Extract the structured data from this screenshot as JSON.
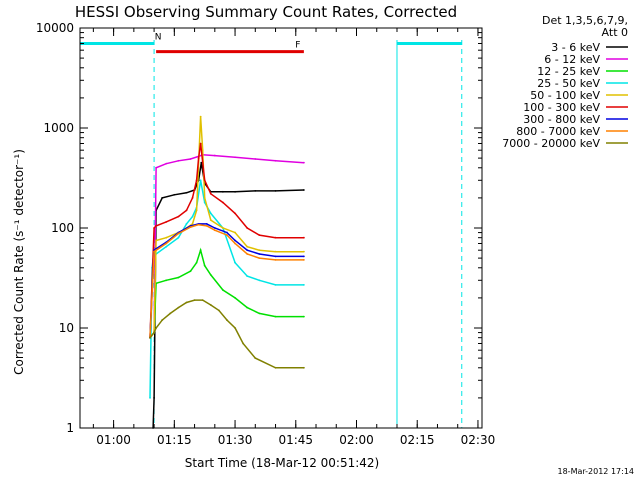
{
  "chart_data": {
    "type": "line",
    "title": "HESSI Observing Summary Count Rates, Corrected",
    "xlabel": "Start Time (18-Mar-12 00:51:42)",
    "ylabel": "Corrected Count Rate (s⁻¹ detector⁻¹)",
    "yscale": "log",
    "xlim": [
      "00:51:42",
      "02:31:00"
    ],
    "ylim": [
      1,
      10000
    ],
    "x_ticks": [
      "01:00",
      "01:15",
      "01:30",
      "01:45",
      "02:00",
      "02:15",
      "02:30"
    ],
    "y_ticks": [
      "1",
      "10",
      "100",
      "1000",
      "10000"
    ],
    "legend_title": [
      "Det 1,3,5,6,7,9,",
      "Att 0"
    ],
    "legend_placement": "right",
    "footer": "18-Mar-2012 17:14",
    "flags": [
      {
        "label": "N",
        "color": "#00e5e5",
        "segments": [
          [
            "00:51:42",
            "01:10:00"
          ],
          [
            "02:10:00",
            "02:26:00"
          ]
        ],
        "level": 7000
      },
      {
        "label": "F",
        "color": "#e00000",
        "segments": [
          [
            "01:10:30",
            "01:47:00"
          ]
        ],
        "level": 5800
      }
    ],
    "night_boundaries": [
      "00:51:42",
      "01:10:00",
      "02:10:00",
      "02:26:00"
    ],
    "series": [
      {
        "name": "3 - 6 keV",
        "color": "#000000",
        "x": [
          "01:09:45",
          "01:10:00",
          "01:10:30",
          "01:12:00",
          "01:15:00",
          "01:18:00",
          "01:20:00",
          "01:21:00",
          "01:21:40",
          "01:22:30",
          "01:24:00",
          "01:27:00",
          "01:30:00",
          "01:35:00",
          "01:40:00",
          "01:47:00"
        ],
        "y": [
          1,
          2,
          150,
          200,
          215,
          225,
          240,
          300,
          450,
          280,
          230,
          230,
          230,
          235,
          235,
          240
        ]
      },
      {
        "name": "6 - 12 keV",
        "color": "#e000e0",
        "x": [
          "01:09:00",
          "01:10:00",
          "01:10:30",
          "01:13:00",
          "01:16:00",
          "01:19:00",
          "01:21:00",
          "01:22:00",
          "01:25:00",
          "01:30:00",
          "01:35:00",
          "01:40:00",
          "01:47:00"
        ],
        "y": [
          8,
          9,
          400,
          440,
          470,
          490,
          520,
          540,
          530,
          510,
          490,
          470,
          450
        ]
      },
      {
        "name": "12 - 25 keV",
        "color": "#00e000",
        "x": [
          "01:09:00",
          "01:10:00",
          "01:10:30",
          "01:13:00",
          "01:16:00",
          "01:19:00",
          "01:20:30",
          "01:21:30",
          "01:22:30",
          "01:24:00",
          "01:27:00",
          "01:30:00",
          "01:33:00",
          "01:36:00",
          "01:40:00",
          "01:47:00"
        ],
        "y": [
          8,
          9,
          28,
          30,
          32,
          37,
          45,
          60,
          42,
          34,
          24,
          20,
          16,
          14,
          13,
          13
        ]
      },
      {
        "name": "25 - 50 keV",
        "color": "#00e5e5",
        "x": [
          "01:09:00",
          "01:09:30",
          "01:10:00",
          "01:10:30",
          "01:13:00",
          "01:16:00",
          "01:18:00",
          "01:19:30",
          "01:20:30",
          "01:21:30",
          "01:22:30",
          "01:24:00",
          "01:27:00",
          "01:30:00",
          "01:33:00",
          "01:36:00",
          "01:40:00",
          "01:47:00"
        ],
        "y": [
          2,
          40,
          60,
          55,
          65,
          80,
          110,
          130,
          160,
          300,
          180,
          140,
          100,
          45,
          33,
          30,
          27,
          27
        ]
      },
      {
        "name": "50 - 100 keV",
        "color": "#e0c000",
        "x": [
          "01:09:00",
          "01:10:00",
          "01:10:30",
          "01:13:00",
          "01:16:00",
          "01:18:00",
          "01:19:30",
          "01:20:30",
          "01:21:30",
          "01:22:00",
          "01:22:30",
          "01:24:00",
          "01:27:00",
          "01:30:00",
          "01:33:00",
          "01:36:00",
          "01:40:00",
          "01:47:00"
        ],
        "y": [
          8,
          9,
          75,
          80,
          90,
          100,
          110,
          150,
          1300,
          600,
          200,
          120,
          100,
          90,
          65,
          60,
          58,
          58
        ]
      },
      {
        "name": "100 - 300 keV",
        "color": "#e00000",
        "x": [
          "01:09:00",
          "01:10:00",
          "01:10:30",
          "01:13:00",
          "01:16:00",
          "01:18:00",
          "01:19:30",
          "01:20:30",
          "01:21:00",
          "01:21:30",
          "01:22:30",
          "01:24:00",
          "01:27:00",
          "01:30:00",
          "01:33:00",
          "01:36:00",
          "01:40:00",
          "01:47:00"
        ],
        "y": [
          8,
          100,
          105,
          115,
          130,
          150,
          200,
          300,
          500,
          700,
          300,
          220,
          180,
          140,
          100,
          85,
          80,
          80
        ]
      },
      {
        "name": "300 - 800 keV",
        "color": "#0000e0",
        "x": [
          "01:09:00",
          "01:10:00",
          "01:10:30",
          "01:13:00",
          "01:16:00",
          "01:19:00",
          "01:21:00",
          "01:23:00",
          "01:25:00",
          "01:28:00",
          "01:30:00",
          "01:33:00",
          "01:36:00",
          "01:40:00",
          "01:47:00"
        ],
        "y": [
          8,
          60,
          62,
          72,
          90,
          105,
          110,
          110,
          100,
          90,
          75,
          60,
          55,
          52,
          52
        ]
      },
      {
        "name": "800 - 7000 keV",
        "color": "#ff8000",
        "x": [
          "01:09:00",
          "01:10:00",
          "01:10:30",
          "01:13:00",
          "01:16:00",
          "01:19:00",
          "01:21:00",
          "01:23:00",
          "01:25:00",
          "01:28:00",
          "01:30:00",
          "01:33:00",
          "01:36:00",
          "01:40:00",
          "01:47:00"
        ],
        "y": [
          8,
          58,
          60,
          70,
          88,
          102,
          108,
          105,
          95,
          85,
          70,
          55,
          50,
          48,
          48
        ]
      },
      {
        "name": "7000 - 20000 keV",
        "color": "#808000",
        "x": [
          "01:09:00",
          "01:10:00",
          "01:10:30",
          "01:12:00",
          "01:14:00",
          "01:16:00",
          "01:18:00",
          "01:20:00",
          "01:22:00",
          "01:24:00",
          "01:26:00",
          "01:28:00",
          "01:30:00",
          "01:32:00",
          "01:35:00",
          "01:40:00",
          "01:47:00"
        ],
        "y": [
          8,
          9,
          10,
          12,
          14,
          16,
          18,
          19,
          19,
          17,
          15,
          12,
          10,
          7,
          5,
          4,
          4
        ]
      }
    ]
  }
}
